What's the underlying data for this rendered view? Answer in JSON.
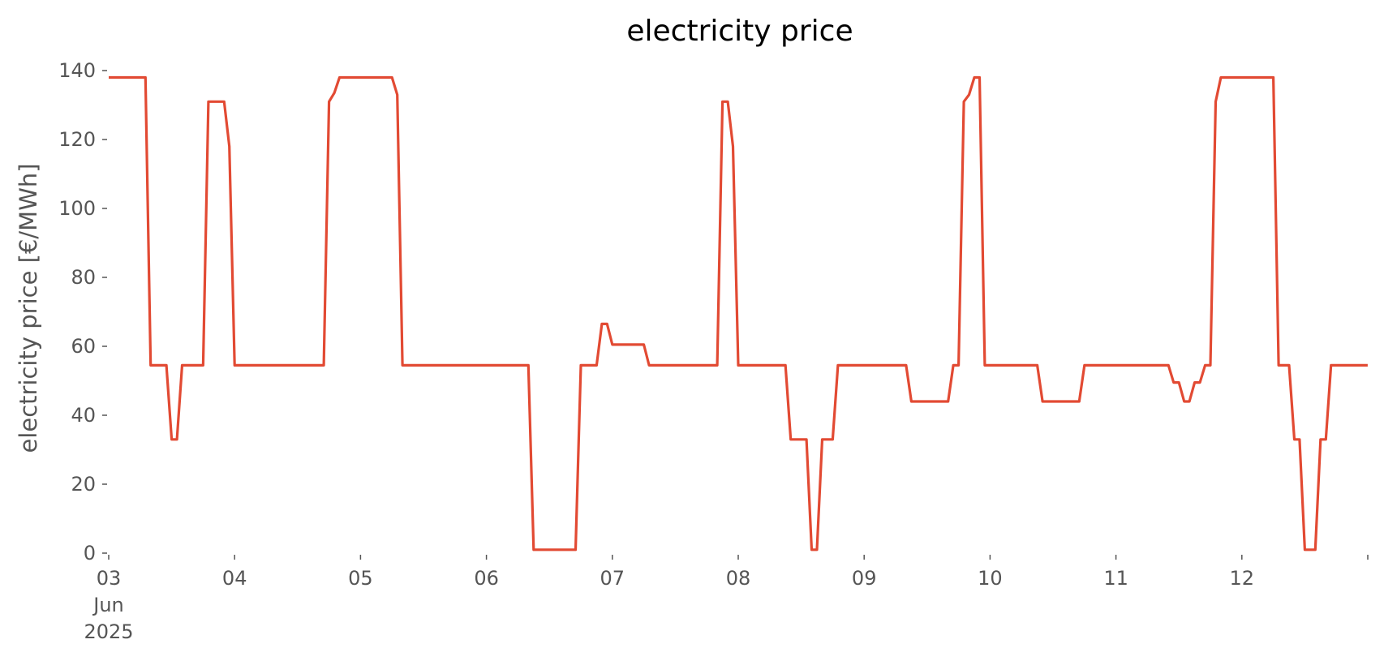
{
  "chart_data": {
    "type": "line",
    "title": "electricity price",
    "xlabel": "",
    "ylabel": "electricity price [€/MWh]",
    "x_start": "2025-06-03",
    "x_end": "2025-06-13",
    "ylim": [
      0,
      140
    ],
    "y_ticks": [
      0,
      20,
      40,
      60,
      80,
      100,
      120,
      140
    ],
    "y_tick_labels": [
      "0",
      "20",
      "40",
      "60",
      "80",
      "100",
      "120",
      "140"
    ],
    "x_ticks": [
      "2025-06-03",
      "2025-06-04",
      "2025-06-05",
      "2025-06-06",
      "2025-06-07",
      "2025-06-08",
      "2025-06-09",
      "2025-06-10",
      "2025-06-11",
      "2025-06-12",
      "2025-06-13"
    ],
    "x_tick_labels": [
      [
        "03",
        "Jun",
        "2025"
      ],
      [
        "04"
      ],
      [
        "05"
      ],
      [
        "06"
      ],
      [
        "07"
      ],
      [
        "08"
      ],
      [
        "09"
      ],
      [
        "10"
      ],
      [
        "11"
      ],
      [
        "12"
      ],
      [
        ""
      ]
    ],
    "grid": false,
    "colors": {
      "series": "#e24a33",
      "text": "#555555",
      "title": "#000000"
    },
    "series": [
      {
        "x": [
          "2025-06-03 00:00",
          "2025-06-03 07:00",
          "2025-06-03 08:00",
          "2025-06-03 11:00",
          "2025-06-03 12:00",
          "2025-06-03 13:00",
          "2025-06-03 14:00",
          "2025-06-03 18:00",
          "2025-06-03 19:00",
          "2025-06-03 22:00",
          "2025-06-03 23:00",
          "2025-06-04 00:00",
          "2025-06-04 17:00",
          "2025-06-04 18:00",
          "2025-06-04 19:00",
          "2025-06-04 20:00",
          "2025-06-05 06:00",
          "2025-06-05 07:00",
          "2025-06-05 08:00",
          "2025-06-06 08:00",
          "2025-06-06 09:00",
          "2025-06-06 17:00",
          "2025-06-06 18:00",
          "2025-06-06 21:00",
          "2025-06-06 22:00",
          "2025-06-06 23:00",
          "2025-06-07 00:00",
          "2025-06-07 06:00",
          "2025-06-07 07:00",
          "2025-06-07 20:00",
          "2025-06-07 21:00",
          "2025-06-07 22:00",
          "2025-06-07 23:00",
          "2025-06-08 00:00",
          "2025-06-08 09:00",
          "2025-06-08 10:00",
          "2025-06-08 13:00",
          "2025-06-08 14:00",
          "2025-06-08 15:00",
          "2025-06-08 16:00",
          "2025-06-08 18:00",
          "2025-06-08 19:00",
          "2025-06-09 08:00",
          "2025-06-09 09:00",
          "2025-06-09 16:00",
          "2025-06-09 17:00",
          "2025-06-09 18:00",
          "2025-06-09 19:00",
          "2025-06-09 20:00",
          "2025-06-09 21:00",
          "2025-06-09 22:00",
          "2025-06-09 23:00",
          "2025-06-10 00:00",
          "2025-06-10 09:00",
          "2025-06-10 10:00",
          "2025-06-10 17:00",
          "2025-06-10 18:00",
          "2025-06-11 10:00",
          "2025-06-11 11:00",
          "2025-06-11 12:00",
          "2025-06-11 13:00",
          "2025-06-11 14:00",
          "2025-06-11 15:00",
          "2025-06-11 16:00",
          "2025-06-11 17:00",
          "2025-06-11 18:00",
          "2025-06-11 19:00",
          "2025-06-11 20:00",
          "2025-06-12 06:00",
          "2025-06-12 07:00",
          "2025-06-12 09:00",
          "2025-06-12 10:00",
          "2025-06-12 11:00",
          "2025-06-12 12:00",
          "2025-06-12 13:00",
          "2025-06-12 14:00",
          "2025-06-12 15:00",
          "2025-06-12 16:00",
          "2025-06-12 17:00",
          "2025-06-12 18:00",
          "2025-06-12 23:59"
        ],
        "y": [
          138,
          138,
          54.5,
          54.5,
          33,
          33,
          54.5,
          54.5,
          131,
          131,
          118,
          54.5,
          54.5,
          131,
          133.5,
          138,
          138,
          133,
          54.5,
          54.5,
          1,
          1,
          54.5,
          54.5,
          66.5,
          66.5,
          60.5,
          60.5,
          54.5,
          54.5,
          131,
          131,
          118,
          54.5,
          54.5,
          33,
          33,
          1,
          1,
          33,
          33,
          54.5,
          54.5,
          44,
          44,
          54.5,
          54.5,
          131,
          133,
          138,
          138,
          54.5,
          54.5,
          54.5,
          44,
          44,
          54.5,
          54.5,
          49.5,
          49.5,
          44,
          44,
          49.5,
          49.5,
          54.5,
          54.5,
          131,
          138,
          138,
          54.5,
          54.5,
          33,
          33,
          1,
          1,
          1,
          33,
          33,
          54.5,
          54.5,
          54.5
        ]
      }
    ]
  }
}
